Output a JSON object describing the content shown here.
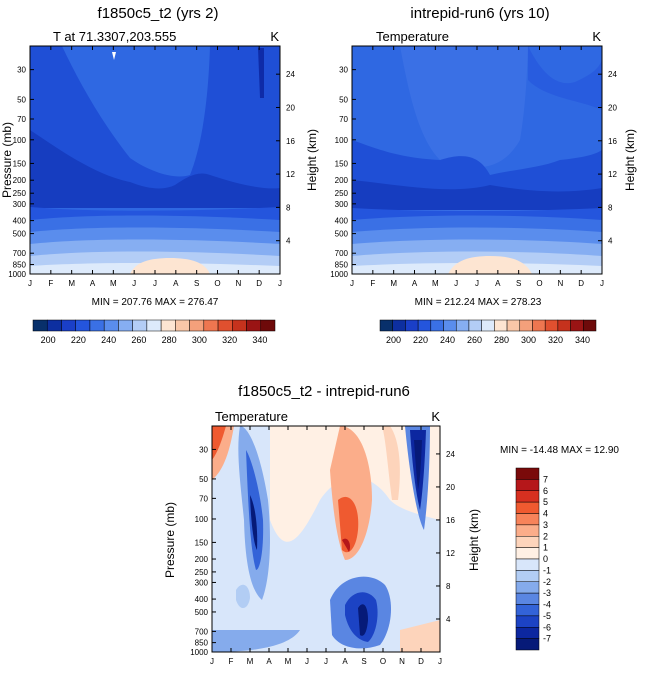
{
  "chart_data": [
    {
      "type": "contour",
      "title": "f1850c5_t2 (yrs 2)",
      "subtitle_left": "T at 71.3307,203.555",
      "subtitle_right": "K",
      "ylabel": "Pressure (mb)",
      "ylabel_right": "Height (km)",
      "x_ticks": [
        "J",
        "F",
        "M",
        "A",
        "M",
        "J",
        "J",
        "A",
        "S",
        "O",
        "N",
        "D",
        "J"
      ],
      "y_ticks": [
        30,
        50,
        70,
        100,
        150,
        200,
        250,
        300,
        400,
        500,
        700,
        850,
        1000
      ],
      "height_ticks": [
        24,
        20,
        16,
        12,
        8,
        4
      ],
      "ylim": [
        1000,
        20
      ],
      "stats": "MIN = 207.76 MAX = 276.47",
      "colorbar_labels": [
        "200",
        "220",
        "240",
        "260",
        "280",
        "300",
        "320",
        "340"
      ],
      "colorbar_range": [
        190,
        350
      ]
    },
    {
      "type": "contour",
      "title": "intrepid-run6 (yrs 10)",
      "subtitle_left": "Temperature",
      "subtitle_right": "K",
      "ylabel": "Pressure (mb)",
      "ylabel_right": "Height (km)",
      "x_ticks": [
        "J",
        "F",
        "M",
        "A",
        "M",
        "J",
        "J",
        "A",
        "S",
        "O",
        "N",
        "D",
        "J"
      ],
      "y_ticks": [
        30,
        50,
        70,
        100,
        150,
        200,
        250,
        300,
        400,
        500,
        700,
        850,
        1000
      ],
      "height_ticks": [
        24,
        20,
        16,
        12,
        8,
        4
      ],
      "ylim": [
        1000,
        20
      ],
      "stats": "MIN = 212.24 MAX = 278.23",
      "colorbar_labels": [
        "200",
        "220",
        "240",
        "260",
        "280",
        "300",
        "320",
        "340"
      ],
      "colorbar_range": [
        190,
        350
      ]
    },
    {
      "type": "contour",
      "title": "f1850c5_t2 - intrepid-run6",
      "subtitle_left": "Temperature",
      "subtitle_right": "K",
      "ylabel": "Pressure (mb)",
      "ylabel_right": "Height (km)",
      "x_ticks": [
        "J",
        "F",
        "M",
        "A",
        "M",
        "J",
        "J",
        "A",
        "S",
        "O",
        "N",
        "D",
        "J"
      ],
      "y_ticks": [
        30,
        50,
        70,
        100,
        150,
        200,
        250,
        300,
        400,
        500,
        700,
        850,
        1000
      ],
      "height_ticks": [
        24,
        20,
        16,
        12,
        8,
        4
      ],
      "ylim": [
        1000,
        20
      ],
      "stats": "MIN = -14.48 MAX =  12.90",
      "colorbar_labels": [
        "7",
        "6",
        "5",
        "4",
        "3",
        "2",
        "1",
        "0",
        "-1",
        "-2",
        "-3",
        "-4",
        "-5",
        "-6",
        "-7"
      ]
    }
  ],
  "colors": {
    "abs_scale": [
      "#08306b",
      "#0d2fa0",
      "#1a3fc8",
      "#2455dd",
      "#3a70e5",
      "#5a8ded",
      "#86aef2",
      "#b3cdf6",
      "#ddeafb",
      "#fde5d2",
      "#f9c7a8",
      "#f4a07b",
      "#ee7650",
      "#e0502f",
      "#c6321d",
      "#9a1414",
      "#6e0a0a"
    ],
    "diff_scale": [
      "#7a0a0a",
      "#b5171a",
      "#d73020",
      "#ef5a30",
      "#f7835a",
      "#fbad8a",
      "#fdd4bb",
      "#fff0e4",
      "#d8e6fa",
      "#b2cdf4",
      "#85abec",
      "#5a86e2",
      "#3363d8",
      "#1c43c4",
      "#0c27a0",
      "#061a78"
    ]
  }
}
